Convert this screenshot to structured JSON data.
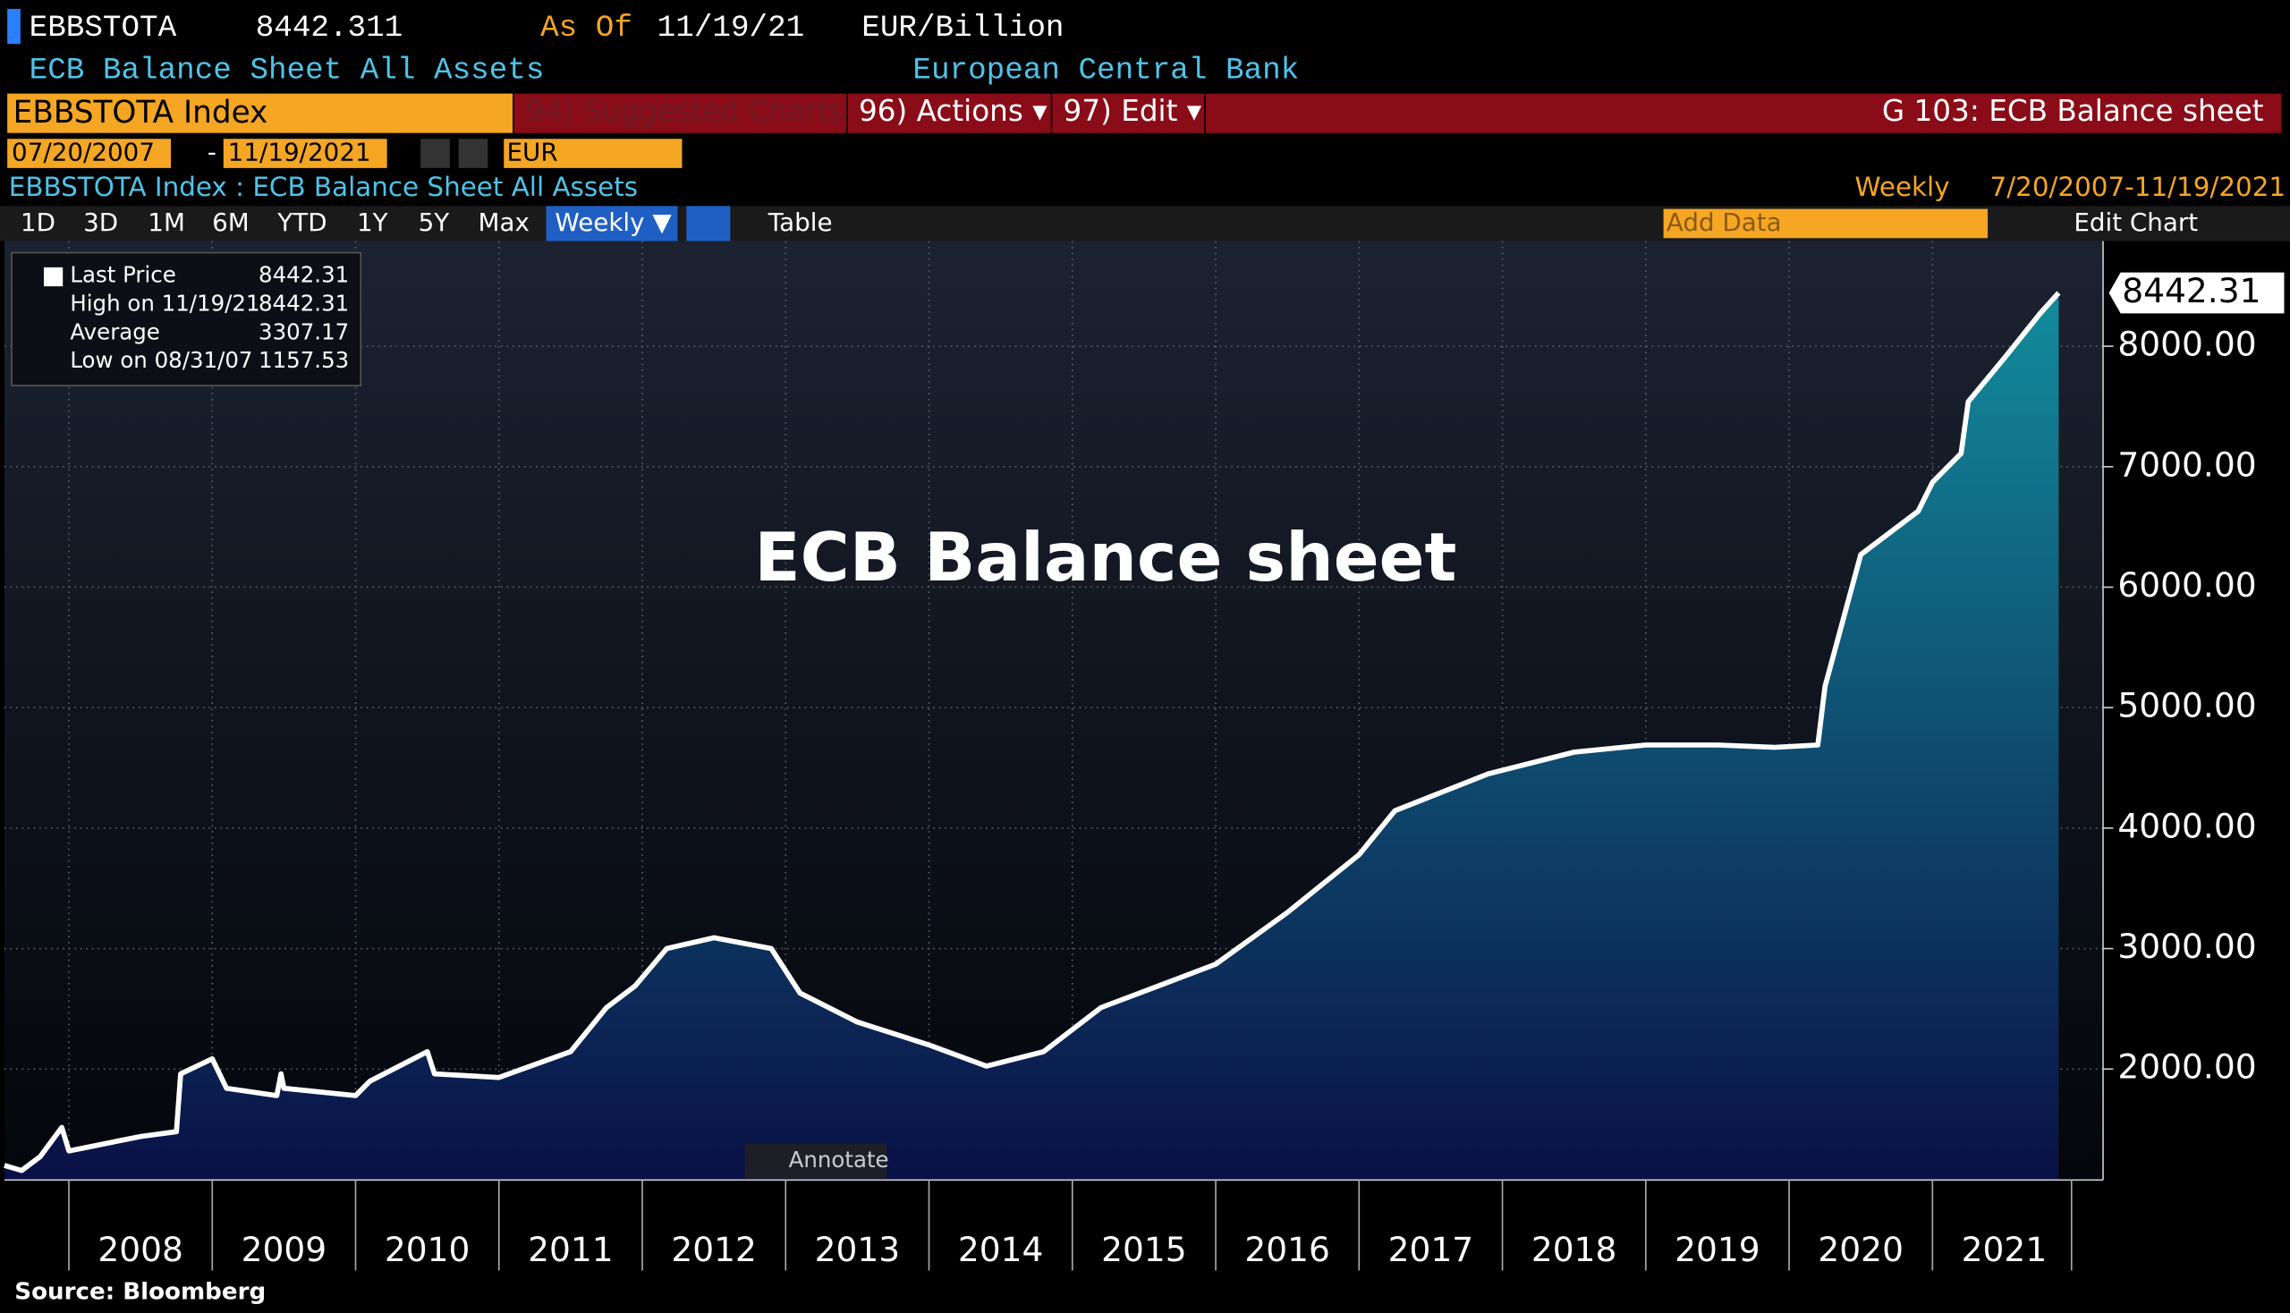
{
  "ui": {
    "ticker": "EBBSTOTA",
    "price": "8442.311",
    "as_of_label": "As Of",
    "as_of_date": "11/19/21",
    "units": "EUR/Billion",
    "description": "ECB Balance Sheet All Assets",
    "source_name": "European Central Bank",
    "security": "EBBSTOTA Index",
    "menu_suggested": "94) Suggested Charts",
    "menu_actions": "96) Actions ▾",
    "menu_edit": "97) Edit ▾",
    "page_title": "G 103: ECB Balance sheet",
    "start_date": "07/20/2007",
    "date_dash": "-",
    "end_date": "11/19/2021",
    "currency": "EUR",
    "chart_heading": "EBBSTOTA Index : ECB Balance Sheet All Assets",
    "frequency": "Weekly",
    "range": "7/20/2007-11/19/2021",
    "periods": [
      "1D",
      "3D",
      "1M",
      "6M",
      "YTD",
      "1Y",
      "5Y",
      "Max"
    ],
    "period_selected": "Weekly ▼",
    "table_button": "Table",
    "add_data": "Add Data",
    "edit_chart": "Edit Chart",
    "legend": [
      [
        "Last Price",
        "8442.31"
      ],
      [
        "High on 11/19/21",
        "8442.31"
      ],
      [
        "Average",
        "3307.17"
      ],
      [
        "Low on 08/31/07",
        "1157.53"
      ]
    ],
    "annotate": "Annotate"
  },
  "chart_data": {
    "type": "area",
    "title": "ECB Balance sheet",
    "source": "Source: Bloomberg",
    "x": [
      2007.55,
      2007.67,
      2007.8,
      2007.95,
      2008.0,
      2008.5,
      2008.75,
      2008.78,
      2009.0,
      2009.1,
      2009.45,
      2009.48,
      2009.5,
      2010.0,
      2010.1,
      2010.5,
      2010.55,
      2011.0,
      2011.5,
      2011.75,
      2011.95,
      2012.17,
      2012.5,
      2012.9,
      2013.1,
      2013.5,
      2014.0,
      2014.4,
      2014.8,
      2015.2,
      2015.6,
      2016.0,
      2016.5,
      2017.0,
      2017.25,
      2017.9,
      2018.5,
      2019.0,
      2019.5,
      2019.9,
      2020.2,
      2020.25,
      2020.5,
      2020.9,
      2021.0,
      2021.2,
      2021.25,
      2021.5,
      2021.75,
      2021.88
    ],
    "values": [
      1200,
      1157.53,
      1273,
      1515,
      1320,
      1440,
      1480,
      1960,
      2085,
      1840,
      1780,
      1960,
      1840,
      1780,
      1900,
      2145,
      1960,
      1930,
      2145,
      2510,
      2690,
      3000,
      3090,
      3000,
      2630,
      2390,
      2200,
      2025,
      2145,
      2510,
      2690,
      2870,
      3300,
      3780,
      4145,
      4450,
      4630,
      4690,
      4690,
      4670,
      4690,
      5175,
      6270,
      6630,
      6870,
      7110,
      7540,
      7900,
      8270,
      8442.31
    ],
    "color": "#ffffff",
    "fill_top": "#138c9c",
    "fill_bottom": "#0a1046",
    "xlim": [
      2007.55,
      2022.19
    ],
    "xticks": [
      {
        "value": 2008,
        "label": "2008"
      },
      {
        "value": 2009,
        "label": "2009"
      },
      {
        "value": 2010,
        "label": "2010"
      },
      {
        "value": 2011,
        "label": "2011"
      },
      {
        "value": 2012,
        "label": "2012"
      },
      {
        "value": 2013,
        "label": "2013"
      },
      {
        "value": 2014,
        "label": "2014"
      },
      {
        "value": 2015,
        "label": "2015"
      },
      {
        "value": 2016,
        "label": "2016"
      },
      {
        "value": 2017,
        "label": "2017"
      },
      {
        "value": 2018,
        "label": "2018"
      },
      {
        "value": 2019,
        "label": "2019"
      },
      {
        "value": 2020,
        "label": "2020"
      },
      {
        "value": 2021,
        "label": "2021"
      }
    ],
    "ylim": [
      1079,
      8873
    ],
    "yticks": [
      {
        "value": 2000,
        "label": "2000.00"
      },
      {
        "value": 3000,
        "label": "3000.00"
      },
      {
        "value": 4000,
        "label": "4000.00"
      },
      {
        "value": 5000,
        "label": "5000.00"
      },
      {
        "value": 6000,
        "label": "6000.00"
      },
      {
        "value": 7000,
        "label": "7000.00"
      },
      {
        "value": 8000,
        "label": "8000.00"
      }
    ],
    "grid": true
  }
}
